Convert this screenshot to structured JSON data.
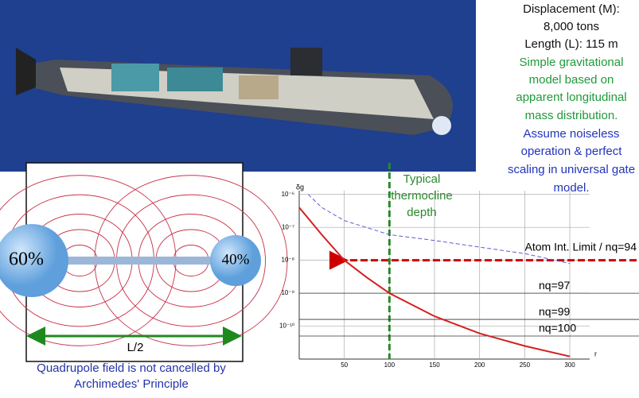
{
  "panel_text": {
    "specs": [
      "Displacement (M):",
      "8,000 tons",
      "Length (L): 115 m"
    ],
    "model": [
      "Simple gravitational",
      "model based on",
      "apparent longitudinal",
      "mass distribution."
    ],
    "assumption": [
      "Assume noiseless",
      "operation & perfect",
      "scaling in universal gate",
      "model."
    ]
  },
  "diagram": {
    "left_mass": "60%",
    "right_mass": "40%",
    "length_label": "L/2",
    "caption": [
      "Quadrupole field is not cancelled by",
      "Archimedes' Principle"
    ]
  },
  "chart_data": {
    "type": "line",
    "x_label": "r",
    "y_label": "δg",
    "log_y": true,
    "grid": true,
    "xlim": [
      0,
      322
    ],
    "ylim": [
      1e-11,
      1.3e-06
    ],
    "xticks": [
      50,
      100,
      150,
      200,
      250,
      300
    ],
    "yticks": [
      {
        "value": 1e-06,
        "label": "10⁻⁶"
      },
      {
        "value": 1e-07,
        "label": "10⁻⁷"
      },
      {
        "value": 1e-08,
        "label": "10⁻⁸"
      },
      {
        "value": 1e-09,
        "label": "10⁻⁹"
      },
      {
        "value": 1e-10,
        "label": "10⁻¹⁰"
      }
    ],
    "series": [
      {
        "color": "#d42020",
        "dash": false,
        "x": [
          0,
          25,
          50,
          75,
          100,
          150,
          200,
          250,
          300
        ],
        "values": [
          4e-07,
          6e-08,
          1e-08,
          3e-09,
          1e-09,
          2e-10,
          6e-11,
          2.5e-11,
          1.2e-11
        ]
      },
      {
        "color": "#5a5ad0",
        "dash": true,
        "x": [
          10,
          25,
          50,
          100,
          150,
          200,
          250,
          300
        ],
        "values": [
          1e-06,
          4e-07,
          1.6e-07,
          6e-08,
          4e-08,
          2.5e-08,
          1.6e-08,
          8e-09
        ]
      }
    ],
    "reference_lines": [
      {
        "label": "Atom Int. Limit / nq=94",
        "value": 1e-08,
        "color": "#cc0000",
        "arrow": true
      },
      {
        "label": "nq=97",
        "value": 1e-09,
        "color": "#333333",
        "arrow": false
      },
      {
        "label": "nq=99",
        "value": 1.6e-10,
        "color": "#333333",
        "arrow": false
      },
      {
        "label": "nq=100",
        "value": 5e-11,
        "color": "#333333",
        "arrow": false
      }
    ],
    "vline": {
      "value": 100,
      "label": [
        "Typical",
        "thermocline",
        "depth"
      ],
      "color": "#2a8a2a"
    }
  }
}
